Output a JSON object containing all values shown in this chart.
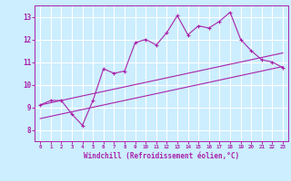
{
  "background_color": "#cceeff",
  "grid_color": "#ffffff",
  "line_color": "#aa22aa",
  "xlabel": "Windchill (Refroidissement éolien,°C)",
  "xlim": [
    -0.5,
    23.5
  ],
  "ylim": [
    7.5,
    13.5
  ],
  "yticks": [
    8,
    9,
    10,
    11,
    12,
    13
  ],
  "xticks": [
    0,
    1,
    2,
    3,
    4,
    5,
    6,
    7,
    8,
    9,
    10,
    11,
    12,
    13,
    14,
    15,
    16,
    17,
    18,
    19,
    20,
    21,
    22,
    23
  ],
  "line1_x": [
    0,
    1,
    2,
    3,
    4,
    5,
    6,
    7,
    8,
    9,
    10,
    11,
    12,
    13,
    14,
    15,
    16,
    17,
    18,
    19,
    20,
    21,
    22,
    23
  ],
  "line1_y": [
    9.1,
    9.3,
    9.3,
    8.7,
    8.2,
    9.3,
    10.7,
    10.5,
    10.6,
    11.85,
    12.0,
    11.75,
    12.3,
    13.05,
    12.2,
    12.6,
    12.5,
    12.8,
    13.2,
    12.0,
    11.5,
    11.1,
    11.0,
    10.75
  ],
  "line2_x": [
    0,
    23
  ],
  "line2_y": [
    9.1,
    11.4
  ],
  "line3_x": [
    0,
    23
  ],
  "line3_y": [
    8.5,
    10.8
  ]
}
